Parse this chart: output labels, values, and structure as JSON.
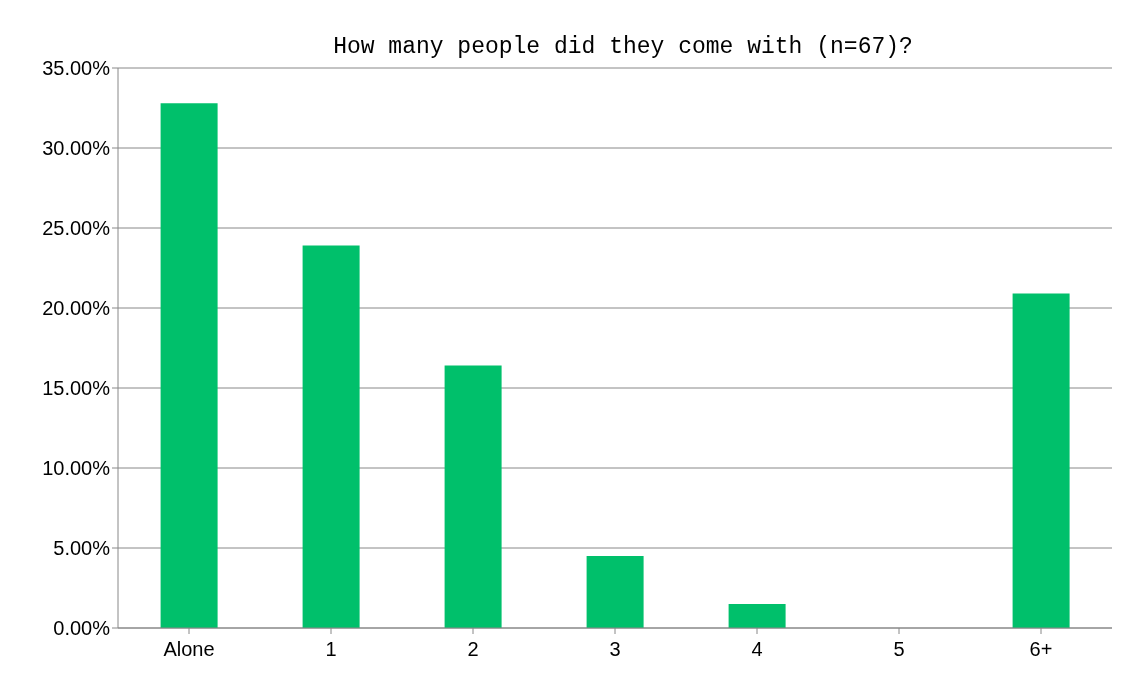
{
  "chart_data": {
    "type": "bar",
    "title": "How many people did they come with (n=67)?",
    "categories": [
      "Alone",
      "1",
      "2",
      "3",
      "4",
      "5",
      "6+"
    ],
    "values": [
      32.8,
      23.9,
      16.4,
      4.5,
      1.5,
      0,
      20.9
    ],
    "color": "#00c06b",
    "ylim": [
      0,
      35
    ],
    "yticks": [
      {
        "value": 0,
        "label": "0.00%"
      },
      {
        "value": 5,
        "label": "5.00%"
      },
      {
        "value": 10,
        "label": "10.00%"
      },
      {
        "value": 15,
        "label": "15.00%"
      },
      {
        "value": 20,
        "label": "20.00%"
      },
      {
        "value": 25,
        "label": "25.00%"
      },
      {
        "value": 30,
        "label": "30.00%"
      },
      {
        "value": 35,
        "label": "35.00%"
      }
    ],
    "grid": "y"
  }
}
